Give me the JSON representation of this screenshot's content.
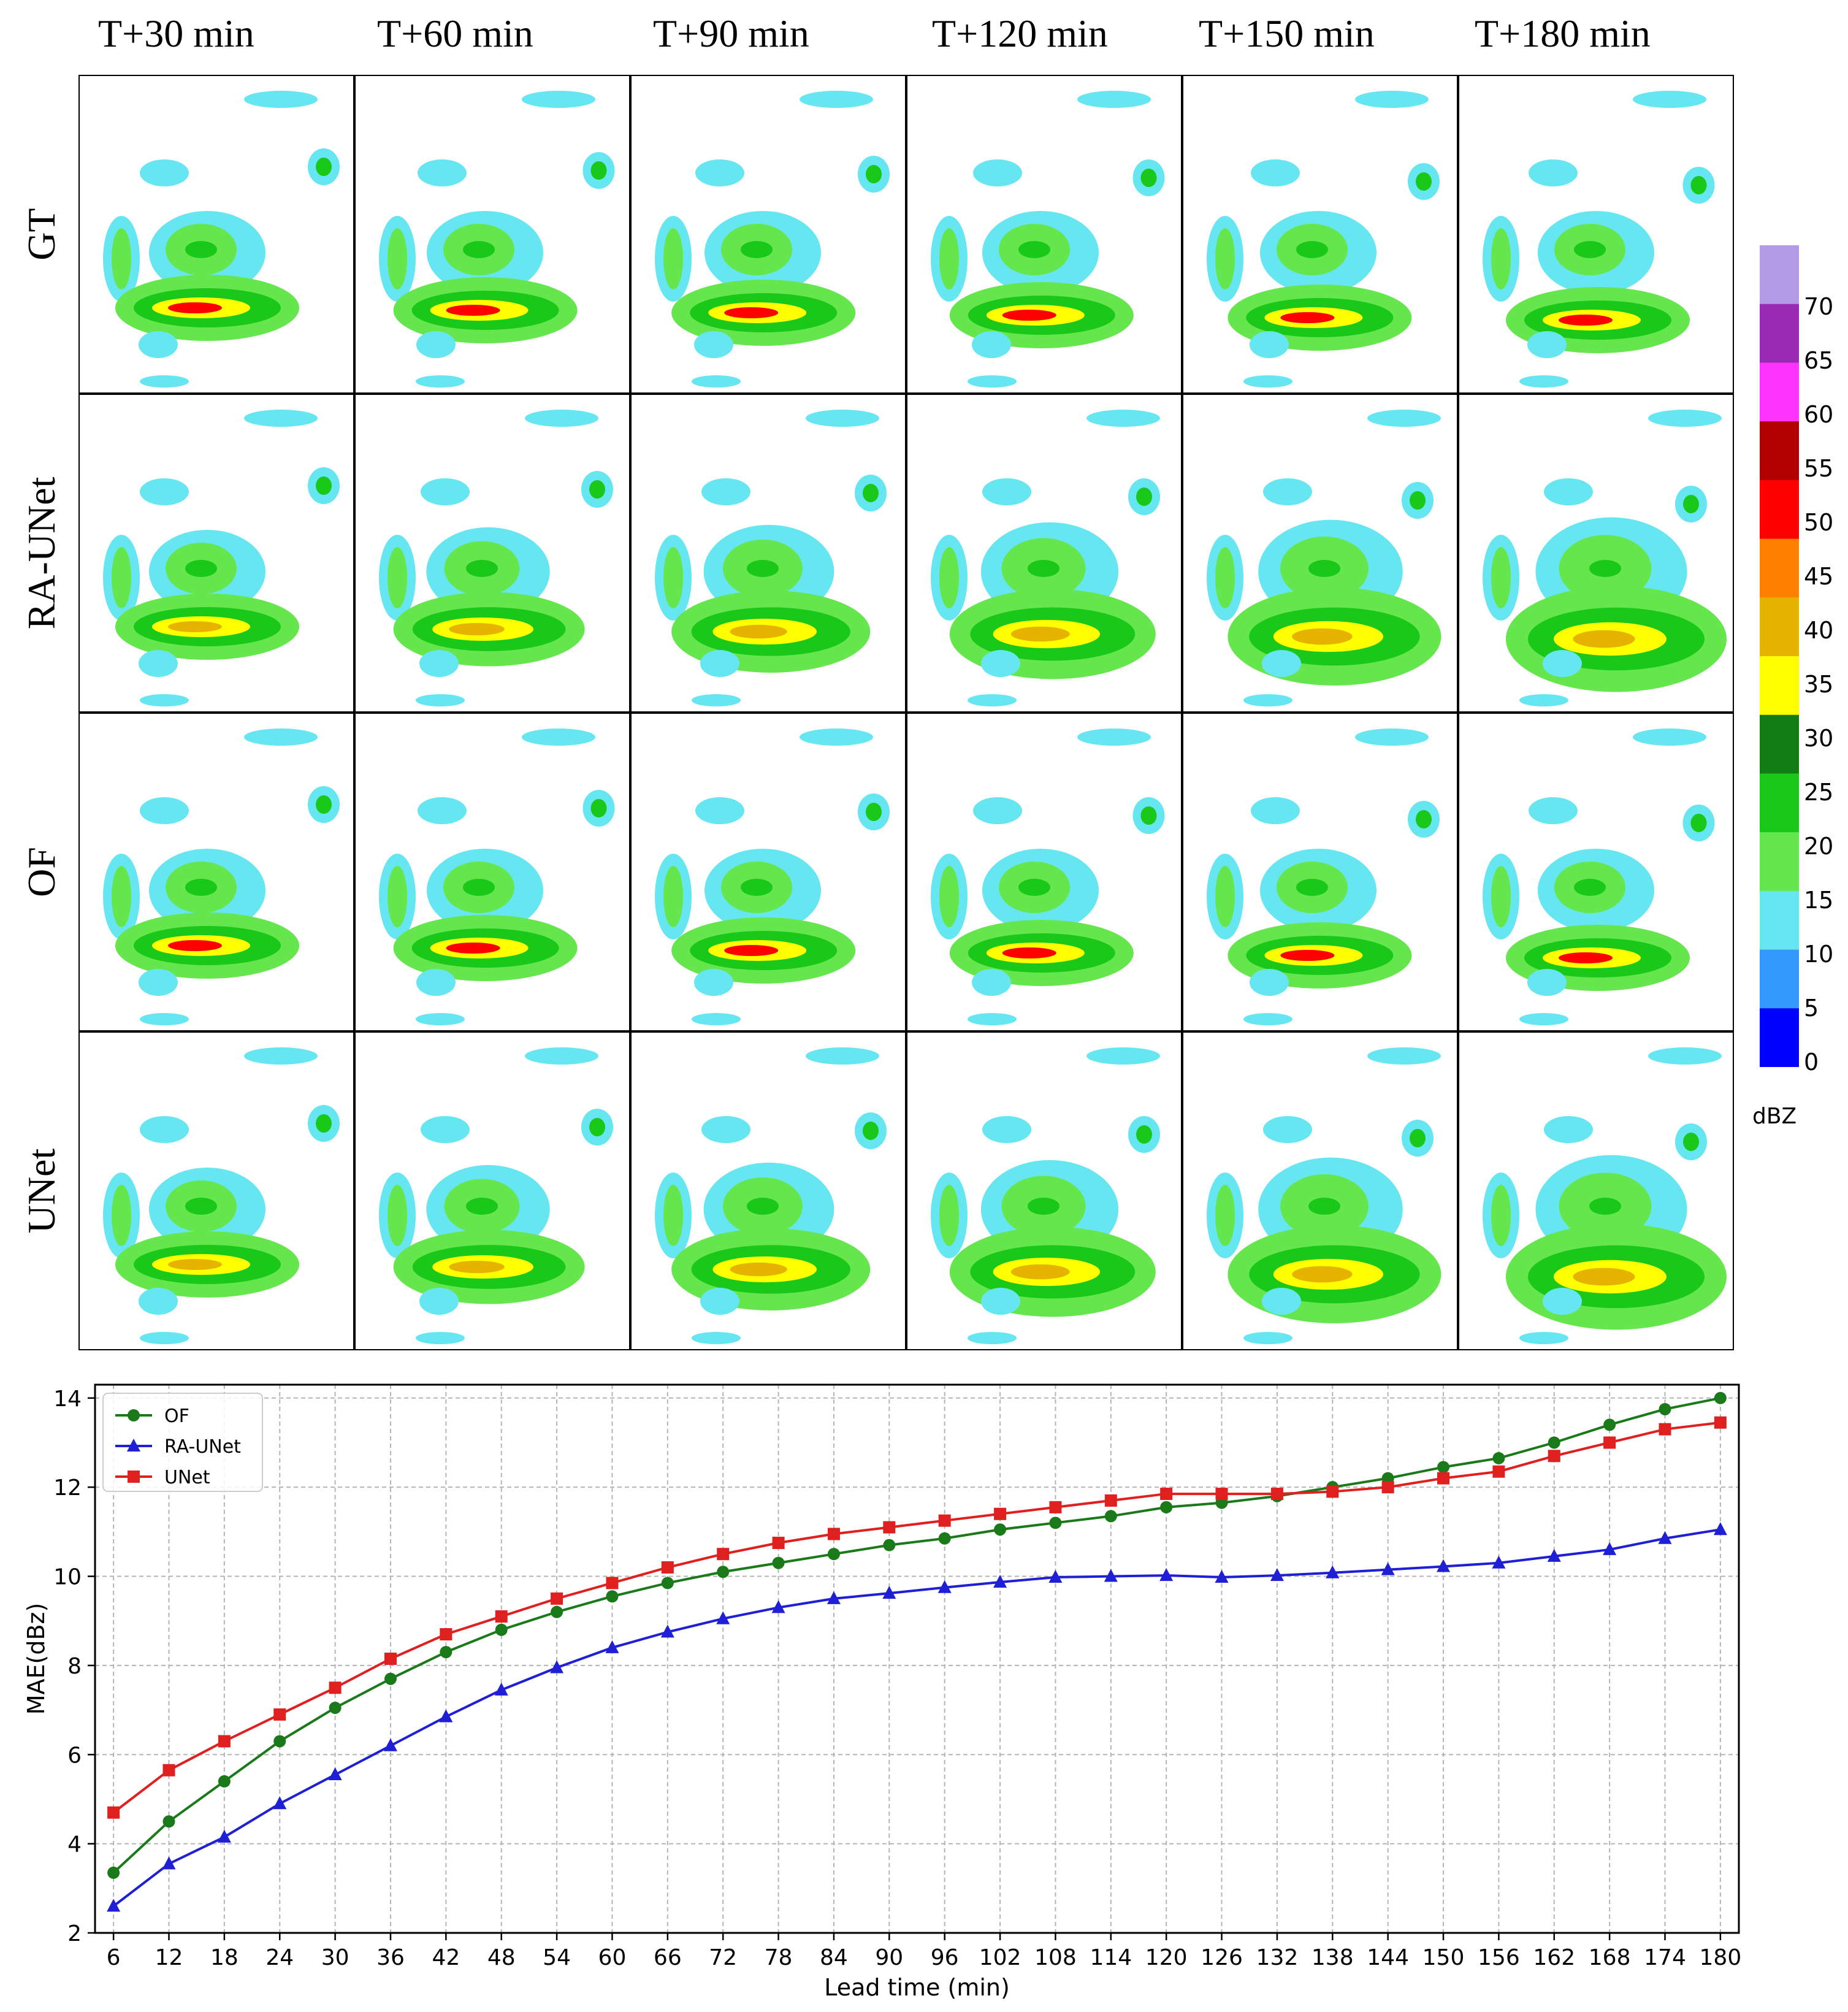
{
  "column_titles": [
    "T+30 min",
    "T+60 min",
    "T+90 min",
    "T+120 min",
    "T+150 min",
    "T+180 min"
  ],
  "row_labels": [
    "GT",
    "RA-UNet",
    "OF",
    "UNet"
  ],
  "colorbar": {
    "unit": "dBZ",
    "tick_labels": [
      "70",
      "65",
      "60",
      "55",
      "50",
      "45",
      "40",
      "35",
      "30",
      "25",
      "20",
      "15",
      "10",
      "5",
      "0"
    ],
    "colors": [
      "#b39ae6",
      "#9a2ab3",
      "#ff33ff",
      "#b30000",
      "#ff0000",
      "#ff8000",
      "#e6b400",
      "#ffff00",
      "#127d12",
      "#19c819",
      "#66e64d",
      "#66e6f0",
      "#3399ff",
      "#0000ff"
    ]
  },
  "radar_colors": {
    "light_blue": "#66e6f0",
    "blue": "#3399ff",
    "light_green": "#66e64d",
    "green": "#19c819",
    "dark_green": "#127d12",
    "yellow": "#ffff00",
    "orange": "#e6b400",
    "red": "#ff0000"
  },
  "chart_data": {
    "type": "line",
    "xlabel": "Lead time (min)",
    "ylabel": "MAE(dBz)",
    "x": [
      6,
      12,
      18,
      24,
      30,
      36,
      42,
      48,
      54,
      60,
      66,
      72,
      78,
      84,
      90,
      96,
      102,
      108,
      114,
      120,
      126,
      132,
      138,
      144,
      150,
      156,
      162,
      168,
      174,
      180
    ],
    "xlim": [
      4,
      182
    ],
    "ylim": [
      2,
      14.3
    ],
    "yticks": [
      2,
      4,
      6,
      8,
      10,
      12,
      14
    ],
    "grid": true,
    "legend_position": "top-left",
    "series": [
      {
        "name": "OF",
        "color": "#1a7a1a",
        "marker": "circle",
        "values": [
          3.35,
          4.5,
          5.4,
          6.3,
          7.05,
          7.7,
          8.3,
          8.8,
          9.2,
          9.55,
          9.85,
          10.1,
          10.3,
          10.5,
          10.7,
          10.85,
          11.05,
          11.2,
          11.35,
          11.55,
          11.65,
          11.8,
          12.0,
          12.2,
          12.45,
          12.65,
          13.0,
          13.4,
          13.75,
          14.0
        ]
      },
      {
        "name": "RA-UNet",
        "color": "#1f1fd6",
        "marker": "triangle",
        "values": [
          2.6,
          3.55,
          4.15,
          4.9,
          5.55,
          6.2,
          6.85,
          7.45,
          7.95,
          8.4,
          8.75,
          9.05,
          9.3,
          9.5,
          9.62,
          9.75,
          9.87,
          9.98,
          10.0,
          10.02,
          9.98,
          10.02,
          10.08,
          10.15,
          10.22,
          10.3,
          10.45,
          10.6,
          10.85,
          11.05
        ]
      },
      {
        "name": "UNet",
        "color": "#e01f1f",
        "marker": "square",
        "values": [
          4.7,
          5.65,
          6.3,
          6.9,
          7.5,
          8.15,
          8.7,
          9.1,
          9.5,
          9.85,
          10.2,
          10.5,
          10.75,
          10.95,
          11.1,
          11.25,
          11.4,
          11.55,
          11.7,
          11.85,
          11.85,
          11.85,
          11.9,
          12.0,
          12.2,
          12.35,
          12.7,
          13.0,
          13.3,
          13.45
        ]
      }
    ]
  }
}
